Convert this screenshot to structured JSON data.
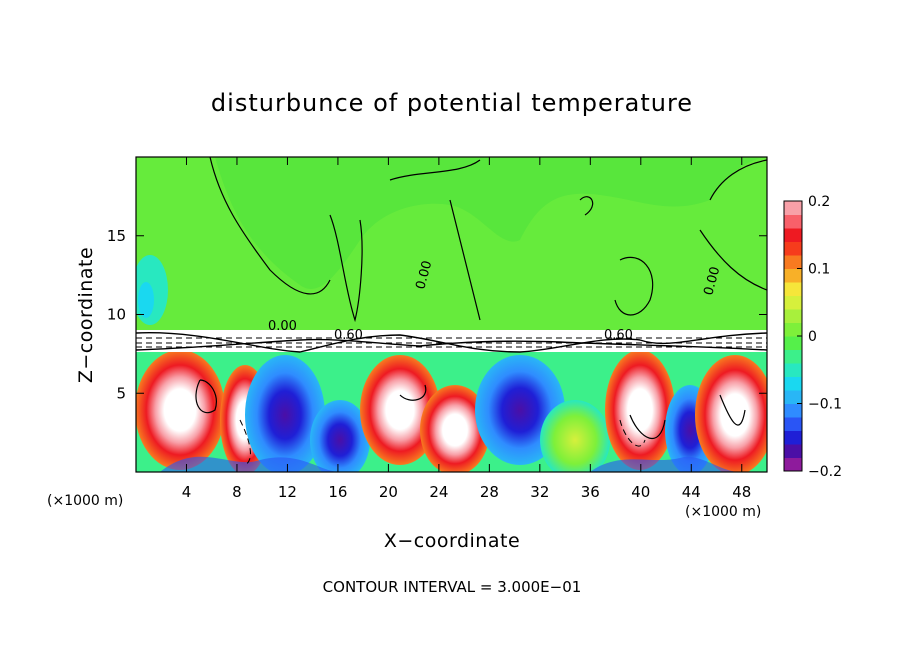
{
  "chart_data": {
    "type": "heatmap",
    "title": "disturbunce of potential temperature",
    "xlabel": "X−coordinate",
    "ylabel": "Z−coordinate",
    "x_unit_left": "(×1000 m)",
    "x_unit_right": "(×1000 m)",
    "xlim": [
      0,
      50
    ],
    "ylim": [
      0,
      20
    ],
    "x_ticks": [
      {
        "value": 4,
        "label": "4"
      },
      {
        "value": 8,
        "label": "8"
      },
      {
        "value": 12,
        "label": "12"
      },
      {
        "value": 16,
        "label": "16"
      },
      {
        "value": 20,
        "label": "20"
      },
      {
        "value": 24,
        "label": "24"
      },
      {
        "value": 28,
        "label": "28"
      },
      {
        "value": 32,
        "label": "32"
      },
      {
        "value": 36,
        "label": "36"
      },
      {
        "value": 40,
        "label": "40"
      },
      {
        "value": 44,
        "label": "44"
      },
      {
        "value": 48,
        "label": "48"
      }
    ],
    "y_ticks": [
      {
        "value": 5,
        "label": "5"
      },
      {
        "value": 10,
        "label": "10"
      },
      {
        "value": 15,
        "label": "15"
      }
    ],
    "colorbar": {
      "range": [
        -0.2,
        0.2
      ],
      "ticks": [
        {
          "value": 0.2,
          "label": "0.2"
        },
        {
          "value": 0.1,
          "label": "0.1"
        },
        {
          "value": 0,
          "label": "0"
        },
        {
          "value": -0.1,
          "label": "−0.1"
        },
        {
          "value": -0.2,
          "label": "−0.2"
        }
      ],
      "colors": [
        "#8e1b9c",
        "#4b0fa6",
        "#1f1fd6",
        "#2a55f5",
        "#2f8cff",
        "#29b6f6",
        "#1ad8f0",
        "#28e8c0",
        "#3cf08a",
        "#55f04a",
        "#7ef03a",
        "#a8f03c",
        "#d6f03c",
        "#f6e63a",
        "#f8b028",
        "#f87a20",
        "#f63c1c",
        "#ee1a22",
        "#f8606a",
        "#f8a0a8"
      ]
    },
    "contour_labels": [
      {
        "text": "0.00",
        "x": 10.5,
        "y": 9.2
      },
      {
        "text": "0.60",
        "x": 16.2,
        "y": 8.5
      },
      {
        "text": "0.60",
        "x": 37.6,
        "y": 8.5
      },
      {
        "text": "0.00",
        "x": 22.5,
        "y": 13.5
      },
      {
        "text": "0.00",
        "x": 45.0,
        "y": 12.5
      }
    ],
    "footer": "CONTOUR INTERVAL = 3.000E−01",
    "colors": {
      "upper_field": "#58e63c",
      "upper_field_light": "#7ef03a",
      "cyan_patch": "#1ad8f0",
      "inversion_band": "#ffffff"
    }
  }
}
